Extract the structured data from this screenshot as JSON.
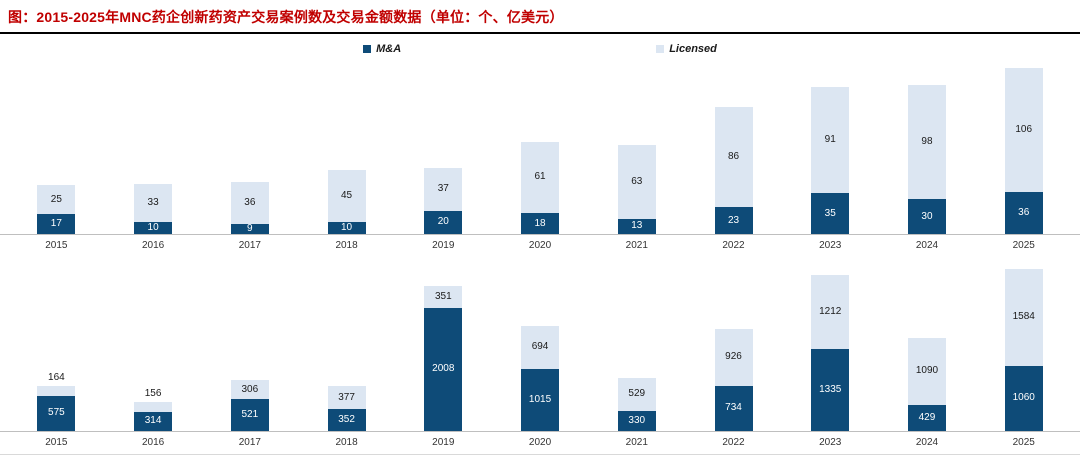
{
  "header": {
    "title": "图：2015-2025年MNC药企创新药资产交易案例数及交易金额数据（单位：个、亿美元）"
  },
  "legend": {
    "mna": "M&A",
    "licensed": "Licensed"
  },
  "colors": {
    "mna": "#0e4b78",
    "licensed": "#dce6f2",
    "axis": "#bfbfbf",
    "title": "#c00000",
    "label_dark": "#1a1a1a",
    "label_light": "#ffffff"
  },
  "chart_data": [
    {
      "type": "bar",
      "stacked": true,
      "legend_position": "top",
      "grid": false,
      "categories": [
        "2015",
        "2016",
        "2017",
        "2018",
        "2019",
        "2020",
        "2021",
        "2022",
        "2023",
        "2024",
        "2025"
      ],
      "series": [
        {
          "name": "M&A",
          "values": [
            17,
            10,
            9,
            10,
            20,
            18,
            13,
            23,
            35,
            30,
            36
          ]
        },
        {
          "name": "Licensed",
          "values": [
            25,
            33,
            36,
            45,
            37,
            61,
            63,
            86,
            91,
            98,
            106
          ]
        }
      ],
      "ylim": [
        0,
        150
      ]
    },
    {
      "type": "bar",
      "stacked": true,
      "legend_position": "top",
      "grid": false,
      "categories": [
        "2015",
        "2016",
        "2017",
        "2018",
        "2019",
        "2020",
        "2021",
        "2022",
        "2023",
        "2024",
        "2025"
      ],
      "series": [
        {
          "name": "M&A",
          "values": [
            575,
            314,
            521,
            352,
            2008,
            1015,
            330,
            734,
            1335,
            429,
            1060
          ]
        },
        {
          "name": "Licensed",
          "values": [
            164,
            156,
            306,
            377,
            351,
            694,
            529,
            926,
            1212,
            1090,
            1584
          ]
        }
      ],
      "ylim": [
        0,
        2800
      ]
    }
  ]
}
